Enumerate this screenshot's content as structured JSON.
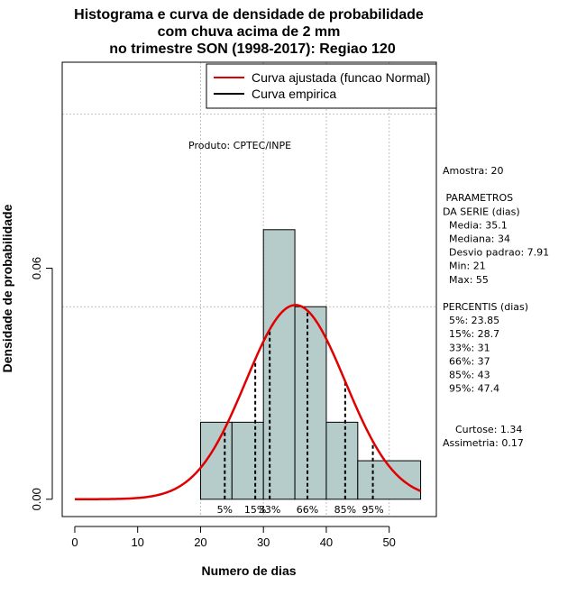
{
  "chart_data": {
    "type": "histogram",
    "title": [
      "Histograma e curva de densidade de probabilidade",
      "com chuva acima de 2 mm",
      "no trimestre SON (1998-2017): Regiao 120"
    ],
    "xlabel": "Numero de dias",
    "ylabel": "Densidade de probabilidade",
    "xlim": [
      -2,
      57.5
    ],
    "ylim": [
      -0.0045,
      0.1135
    ],
    "x_ticks": [
      0,
      10,
      20,
      30,
      40,
      50
    ],
    "y_ticks": [
      0.0,
      0.06
    ],
    "y_tick_labels": [
      "0.00",
      "0.06"
    ],
    "bins": [
      {
        "start": 20,
        "end": 25,
        "density": 0.02
      },
      {
        "start": 25,
        "end": 30,
        "density": 0.02
      },
      {
        "start": 30,
        "end": 35,
        "density": 0.07
      },
      {
        "start": 35,
        "end": 40,
        "density": 0.05
      },
      {
        "start": 40,
        "end": 45,
        "density": 0.02
      },
      {
        "start": 45,
        "end": 55,
        "density": 0.01
      }
    ],
    "bar_color": "#b6cccb",
    "grid": true,
    "grid_x": [
      20,
      30,
      40,
      50
    ],
    "grid_y": [
      0.05,
      0.1
    ],
    "normal_curve": {
      "mean": 35.1,
      "sd": 7.91,
      "x_range": [
        0,
        55
      ],
      "color": "#e00000"
    },
    "percentile_lines": [
      {
        "label": "5%",
        "x": 23.85
      },
      {
        "label": "15%",
        "x": 28.7
      },
      {
        "label": "33%",
        "x": 31
      },
      {
        "label": "66%",
        "x": 37
      },
      {
        "label": "85%",
        "x": 43
      },
      {
        "label": "95%",
        "x": 47.4
      }
    ],
    "legend": {
      "position": "top-right",
      "entries": [
        {
          "label": "Curva ajustada (funcao Normal)",
          "color": "#e00000"
        },
        {
          "label": "Curva empirica",
          "color": "#000000"
        }
      ]
    },
    "annotation": "Produto: CPTEC/INPE"
  },
  "stats_panel": {
    "lines": [
      "Amostra: 20",
      "",
      " PARAMETROS",
      "DA SERIE (dias)",
      "  Media: 35.1",
      "  Mediana: 34",
      "  Desvio padrao: 7.91",
      "  Min: 21",
      "  Max: 55",
      "",
      "PERCENTIS (dias)",
      "  5%: 23.85",
      "  15%: 28.7",
      "  33%: 31",
      "  66%: 37",
      "  85%: 43",
      "  95%: 47.4",
      "",
      "",
      "    Curtose: 1.34",
      "Assimetria: 0.17"
    ]
  }
}
